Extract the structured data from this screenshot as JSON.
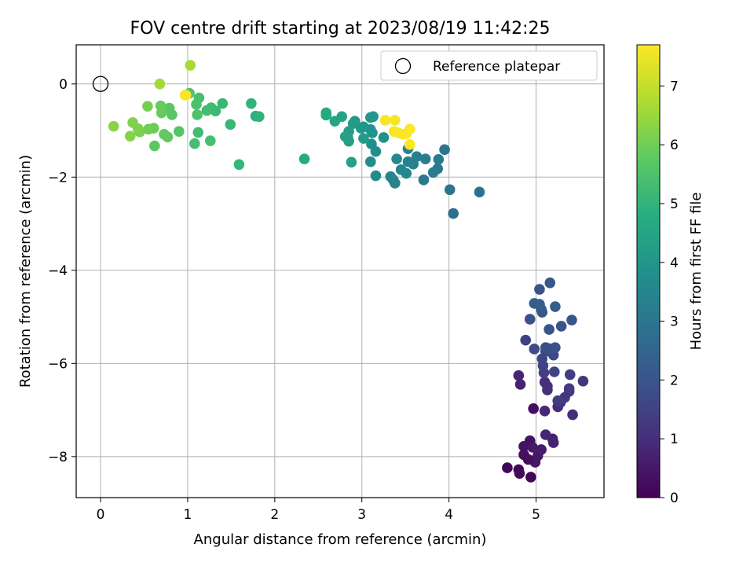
{
  "chart_data": {
    "type": "scatter",
    "title": "FOV centre drift starting at 2023/08/19 11:42:25",
    "xlabel": "Angular distance from reference (arcmin)",
    "ylabel": "Rotation from reference (arcmin)",
    "xlim": [
      -0.28,
      5.78
    ],
    "ylim": [
      -8.88,
      0.84
    ],
    "xticks": [
      "0",
      "1",
      "2",
      "3",
      "4",
      "5"
    ],
    "yticks": [
      "0",
      "−2",
      "−4",
      "−6",
      "−8"
    ],
    "grid": true,
    "legend": {
      "placement": "top-right",
      "entries": [
        "Reference platepar"
      ]
    },
    "colorbar": {
      "label": "Hours from first FF file",
      "range": [
        0,
        7.7
      ],
      "ticks": [
        "0",
        "1",
        "2",
        "3",
        "4",
        "5",
        "6",
        "7"
      ],
      "colormap": "viridis"
    },
    "reference_point": {
      "x": 0,
      "y": 0
    },
    "points": [
      {
        "x": 4.67,
        "y": -8.24,
        "h": 0.1
      },
      {
        "x": 4.8,
        "y": -8.28,
        "h": 0.15
      },
      {
        "x": 4.81,
        "y": -8.36,
        "h": 0.2
      },
      {
        "x": 4.94,
        "y": -8.44,
        "h": 0.12
      },
      {
        "x": 4.86,
        "y": -7.96,
        "h": 0.3
      },
      {
        "x": 4.93,
        "y": -7.66,
        "h": 0.35
      },
      {
        "x": 4.86,
        "y": -7.78,
        "h": 0.4
      },
      {
        "x": 4.99,
        "y": -8.12,
        "h": 0.45
      },
      {
        "x": 5.02,
        "y": -7.98,
        "h": 0.5
      },
      {
        "x": 4.91,
        "y": -8.06,
        "h": 0.28
      },
      {
        "x": 4.96,
        "y": -7.8,
        "h": 0.55
      },
      {
        "x": 5.06,
        "y": -7.85,
        "h": 0.6
      },
      {
        "x": 4.97,
        "y": -6.97,
        "h": 0.3
      },
      {
        "x": 5.19,
        "y": -7.62,
        "h": 0.7
      },
      {
        "x": 5.2,
        "y": -7.7,
        "h": 0.75
      },
      {
        "x": 5.11,
        "y": -7.53,
        "h": 0.8
      },
      {
        "x": 5.1,
        "y": -7.02,
        "h": 0.85
      },
      {
        "x": 5.25,
        "y": -6.93,
        "h": 0.9
      },
      {
        "x": 5.42,
        "y": -7.1,
        "h": 0.95
      },
      {
        "x": 5.13,
        "y": -6.49,
        "h": 1.0
      },
      {
        "x": 5.1,
        "y": -6.4,
        "h": 1.05
      },
      {
        "x": 5.13,
        "y": -6.57,
        "h": 1.1
      },
      {
        "x": 4.82,
        "y": -6.45,
        "h": 0.75
      },
      {
        "x": 4.8,
        "y": -6.26,
        "h": 0.8
      },
      {
        "x": 5.28,
        "y": -6.84,
        "h": 1.15
      },
      {
        "x": 5.33,
        "y": -6.73,
        "h": 1.2
      },
      {
        "x": 5.38,
        "y": -6.6,
        "h": 1.25
      },
      {
        "x": 5.38,
        "y": -6.54,
        "h": 1.3
      },
      {
        "x": 5.25,
        "y": -6.8,
        "h": 1.35
      },
      {
        "x": 5.39,
        "y": -6.24,
        "h": 1.4
      },
      {
        "x": 5.54,
        "y": -6.38,
        "h": 1.2
      },
      {
        "x": 5.09,
        "y": -6.2,
        "h": 1.45
      },
      {
        "x": 5.21,
        "y": -6.18,
        "h": 1.5
      },
      {
        "x": 5.08,
        "y": -6.05,
        "h": 1.55
      },
      {
        "x": 5.07,
        "y": -5.9,
        "h": 1.6
      },
      {
        "x": 5.11,
        "y": -5.74,
        "h": 1.65
      },
      {
        "x": 5.2,
        "y": -5.82,
        "h": 1.7
      },
      {
        "x": 4.98,
        "y": -5.69,
        "h": 1.75
      },
      {
        "x": 5.11,
        "y": -5.66,
        "h": 1.8
      },
      {
        "x": 5.15,
        "y": -5.68,
        "h": 1.85
      },
      {
        "x": 5.22,
        "y": -5.66,
        "h": 1.9
      },
      {
        "x": 4.88,
        "y": -5.5,
        "h": 1.45
      },
      {
        "x": 5.15,
        "y": -5.27,
        "h": 1.95
      },
      {
        "x": 5.29,
        "y": -5.2,
        "h": 2.0
      },
      {
        "x": 5.41,
        "y": -5.07,
        "h": 2.05
      },
      {
        "x": 4.93,
        "y": -5.05,
        "h": 1.9
      },
      {
        "x": 5.07,
        "y": -4.9,
        "h": 2.1
      },
      {
        "x": 5.06,
        "y": -4.84,
        "h": 2.15
      },
      {
        "x": 4.98,
        "y": -4.71,
        "h": 2.2
      },
      {
        "x": 5.04,
        "y": -4.73,
        "h": 2.25
      },
      {
        "x": 5.22,
        "y": -4.78,
        "h": 2.3
      },
      {
        "x": 5.04,
        "y": -4.41,
        "h": 2.0
      },
      {
        "x": 5.16,
        "y": -4.27,
        "h": 2.1
      },
      {
        "x": 4.35,
        "y": -2.32,
        "h": 2.9
      },
      {
        "x": 4.05,
        "y": -2.78,
        "h": 2.8
      },
      {
        "x": 4.01,
        "y": -2.27,
        "h": 2.95
      },
      {
        "x": 3.71,
        "y": -2.06,
        "h": 3.1
      },
      {
        "x": 3.95,
        "y": -1.41,
        "h": 3.0
      },
      {
        "x": 3.87,
        "y": -1.82,
        "h": 3.05
      },
      {
        "x": 3.88,
        "y": -1.62,
        "h": 3.15
      },
      {
        "x": 3.82,
        "y": -1.9,
        "h": 3.2
      },
      {
        "x": 3.73,
        "y": -1.61,
        "h": 3.25
      },
      {
        "x": 3.63,
        "y": -1.56,
        "h": 3.3
      },
      {
        "x": 3.59,
        "y": -1.72,
        "h": 3.35
      },
      {
        "x": 3.53,
        "y": -1.67,
        "h": 3.4
      },
      {
        "x": 3.53,
        "y": -1.39,
        "h": 3.45
      },
      {
        "x": 3.51,
        "y": -1.92,
        "h": 3.5
      },
      {
        "x": 3.45,
        "y": -1.84,
        "h": 3.55
      },
      {
        "x": 3.4,
        "y": -1.61,
        "h": 3.6
      },
      {
        "x": 3.38,
        "y": -2.13,
        "h": 3.35
      },
      {
        "x": 3.36,
        "y": -2.06,
        "h": 3.4
      },
      {
        "x": 3.33,
        "y": -1.99,
        "h": 3.45
      },
      {
        "x": 3.16,
        "y": -1.97,
        "h": 3.65
      },
      {
        "x": 3.1,
        "y": -1.67,
        "h": 3.7
      },
      {
        "x": 3.16,
        "y": -1.45,
        "h": 3.75
      },
      {
        "x": 3.11,
        "y": -1.29,
        "h": 3.8
      },
      {
        "x": 3.25,
        "y": -1.15,
        "h": 3.85
      },
      {
        "x": 3.12,
        "y": -1.05,
        "h": 3.9
      },
      {
        "x": 3.1,
        "y": -0.98,
        "h": 3.95
      },
      {
        "x": 3.02,
        "y": -0.92,
        "h": 4.0
      },
      {
        "x": 2.99,
        "y": -0.95,
        "h": 4.05
      },
      {
        "x": 2.92,
        "y": -0.8,
        "h": 4.1
      },
      {
        "x": 2.9,
        "y": -0.85,
        "h": 4.15
      },
      {
        "x": 2.85,
        "y": -1.02,
        "h": 4.2
      },
      {
        "x": 2.84,
        "y": -1.16,
        "h": 4.25
      },
      {
        "x": 2.85,
        "y": -1.23,
        "h": 4.3
      },
      {
        "x": 2.81,
        "y": -1.13,
        "h": 4.35
      },
      {
        "x": 2.88,
        "y": -1.68,
        "h": 4.4
      },
      {
        "x": 2.77,
        "y": -0.7,
        "h": 4.45
      },
      {
        "x": 2.69,
        "y": -0.8,
        "h": 4.5
      },
      {
        "x": 2.59,
        "y": -0.62,
        "h": 4.55
      },
      {
        "x": 2.59,
        "y": -0.67,
        "h": 4.6
      },
      {
        "x": 3.1,
        "y": -0.72,
        "h": 4.0
      },
      {
        "x": 3.13,
        "y": -0.7,
        "h": 4.05
      },
      {
        "x": 3.02,
        "y": -1.17,
        "h": 4.1
      },
      {
        "x": 2.34,
        "y": -1.61,
        "h": 4.7
      },
      {
        "x": 1.78,
        "y": -0.69,
        "h": 4.9
      },
      {
        "x": 1.82,
        "y": -0.7,
        "h": 4.95
      },
      {
        "x": 1.73,
        "y": -0.42,
        "h": 5.0
      },
      {
        "x": 1.59,
        "y": -1.73,
        "h": 5.05
      },
      {
        "x": 1.49,
        "y": -0.87,
        "h": 5.1
      },
      {
        "x": 1.4,
        "y": -0.42,
        "h": 5.15
      },
      {
        "x": 1.32,
        "y": -0.58,
        "h": 5.2
      },
      {
        "x": 1.27,
        "y": -0.51,
        "h": 5.25
      },
      {
        "x": 1.22,
        "y": -0.57,
        "h": 5.3
      },
      {
        "x": 1.26,
        "y": -1.22,
        "h": 5.35
      },
      {
        "x": 1.13,
        "y": -0.3,
        "h": 5.4
      },
      {
        "x": 1.1,
        "y": -0.44,
        "h": 5.45
      },
      {
        "x": 1.11,
        "y": -0.66,
        "h": 5.5
      },
      {
        "x": 1.12,
        "y": -1.04,
        "h": 5.3
      },
      {
        "x": 1.08,
        "y": -1.28,
        "h": 5.35
      },
      {
        "x": 1.02,
        "y": -0.2,
        "h": 5.55
      },
      {
        "x": 0.9,
        "y": -1.02,
        "h": 5.6
      },
      {
        "x": 0.82,
        "y": -0.66,
        "h": 5.65
      },
      {
        "x": 0.79,
        "y": -0.52,
        "h": 5.7
      },
      {
        "x": 0.77,
        "y": -1.14,
        "h": 5.75
      },
      {
        "x": 0.73,
        "y": -1.08,
        "h": 5.8
      },
      {
        "x": 0.7,
        "y": -0.62,
        "h": 5.85
      },
      {
        "x": 0.69,
        "y": -0.47,
        "h": 5.9
      },
      {
        "x": 0.62,
        "y": -1.33,
        "h": 5.75
      },
      {
        "x": 0.61,
        "y": -0.95,
        "h": 5.95
      },
      {
        "x": 0.55,
        "y": -0.97,
        "h": 6.0
      },
      {
        "x": 0.54,
        "y": -0.48,
        "h": 6.05
      },
      {
        "x": 0.45,
        "y": -1.03,
        "h": 6.1
      },
      {
        "x": 0.43,
        "y": -0.96,
        "h": 6.15
      },
      {
        "x": 0.37,
        "y": -0.83,
        "h": 6.2
      },
      {
        "x": 0.34,
        "y": -1.12,
        "h": 6.25
      },
      {
        "x": 0.15,
        "y": -0.91,
        "h": 6.3
      },
      {
        "x": 0.68,
        "y": 0.0,
        "h": 6.6
      },
      {
        "x": 1.03,
        "y": 0.4,
        "h": 6.65
      },
      {
        "x": 0.98,
        "y": -0.24,
        "h": 7.6
      },
      {
        "x": 0.97,
        "y": -0.24,
        "h": 7.65
      },
      {
        "x": 3.27,
        "y": -0.78,
        "h": 7.6
      },
      {
        "x": 3.38,
        "y": -0.78,
        "h": 7.62
      },
      {
        "x": 3.37,
        "y": -1.02,
        "h": 7.64
      },
      {
        "x": 3.42,
        "y": -1.05,
        "h": 7.66
      },
      {
        "x": 3.47,
        "y": -1.08,
        "h": 7.68
      },
      {
        "x": 3.51,
        "y": -1.07,
        "h": 7.65
      },
      {
        "x": 3.55,
        "y": -0.97,
        "h": 7.7
      },
      {
        "x": 3.55,
        "y": -1.3,
        "h": 7.7
      }
    ]
  }
}
